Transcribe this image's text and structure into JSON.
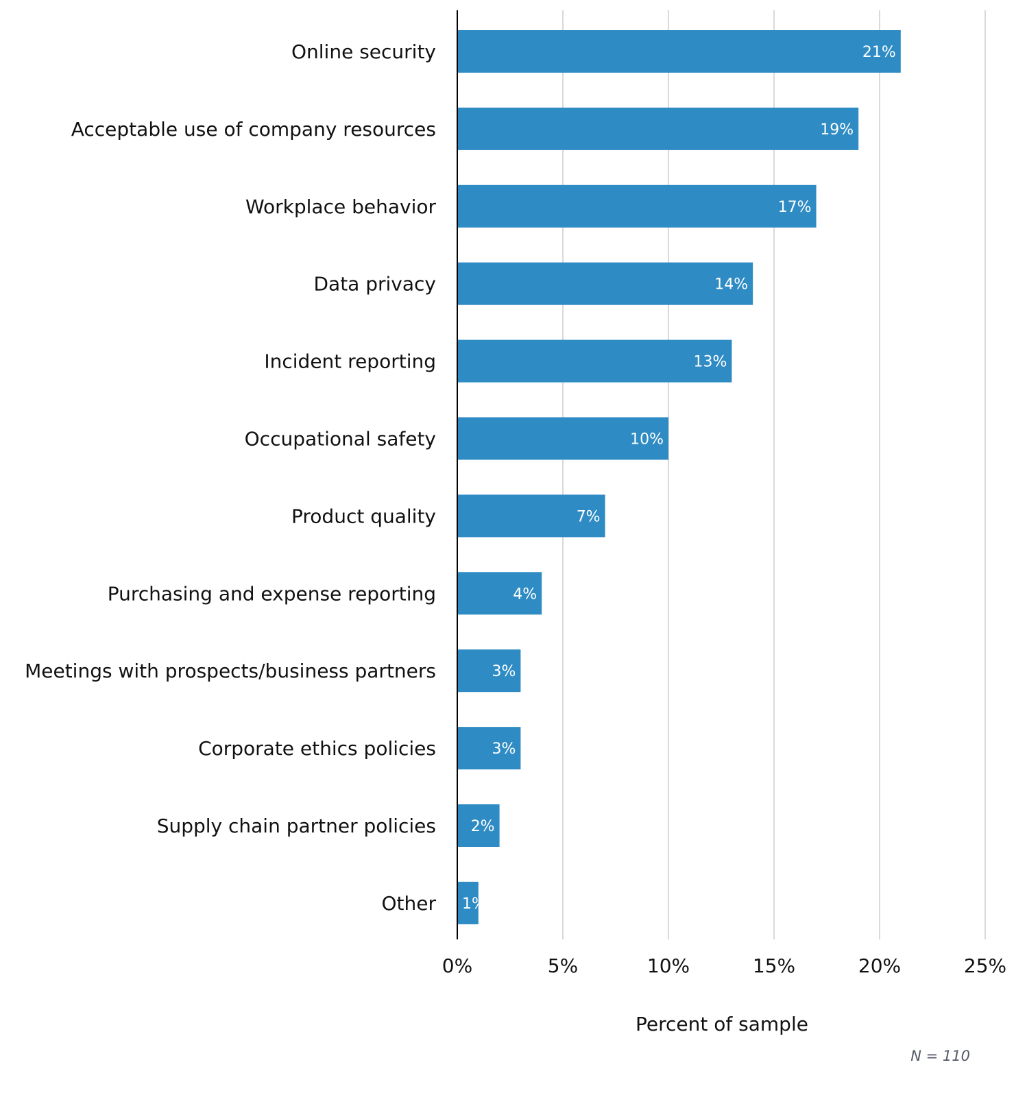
{
  "chart_data": {
    "type": "bar",
    "orientation": "horizontal",
    "categories": [
      "Online security",
      "Acceptable use of company resources",
      "Workplace behavior",
      "Data privacy",
      "Incident reporting",
      "Occupational safety",
      "Product quality",
      "Purchasing and expense reporting",
      "Meetings with prospects/business partners",
      "Corporate ethics policies",
      "Supply chain partner policies",
      "Other"
    ],
    "values": [
      21,
      19,
      17,
      14,
      13,
      10,
      7,
      4,
      3,
      3,
      2,
      1
    ],
    "value_labels": [
      "21%",
      "19%",
      "17%",
      "14%",
      "13%",
      "10%",
      "7%",
      "4%",
      "3%",
      "3%",
      "2%",
      "1%"
    ],
    "xlabel": "Percent of sample",
    "ylabel": "",
    "xlim": [
      0,
      25
    ],
    "xticks": [
      0,
      5,
      10,
      15,
      20,
      25
    ],
    "xtick_labels": [
      "0%",
      "5%",
      "10%",
      "15%",
      "20%",
      "25%"
    ],
    "grid": "vertical",
    "note": "N = 110",
    "colors": {
      "bar": "#2e8bc4",
      "grid": "#d9d9d9",
      "axis": "#000000",
      "note": "#555a66"
    }
  }
}
